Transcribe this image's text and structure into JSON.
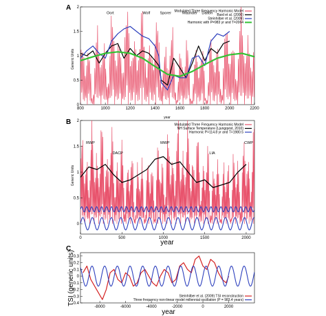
{
  "chart_data": [
    {
      "panel": "A",
      "type": "line",
      "xlabel": "year",
      "ylabel": "Generic Units",
      "xlim": [
        800,
        2200
      ],
      "ylim": [
        0,
        2
      ],
      "xticks": [
        "800",
        "1000",
        "1200",
        "1400",
        "1600",
        "1800",
        "2000",
        "2200"
      ],
      "yticks": [
        "0",
        "0.5",
        "1",
        "1.5",
        "2"
      ],
      "legend_position": "top-right",
      "annotations": [
        {
          "text": "Oort",
          "x": 1040,
          "y": 1.85
        },
        {
          "text": "Wolf",
          "x": 1330,
          "y": 1.85
        },
        {
          "text": "Sporer",
          "x": 1485,
          "y": 1.85
        },
        {
          "text": "Maunder",
          "x": 1680,
          "y": 1.85
        },
        {
          "text": "Dalton",
          "x": 1820,
          "y": 1.85
        }
      ],
      "series": [
        {
          "name": "Modulated Three Frequency Harmonic Model",
          "color": "#e8506a",
          "kind": "fill",
          "period": 11,
          "modPeriods": [
            61,
            115,
            983
          ],
          "base": 0.0
        },
        {
          "name": "Bard et al. (2000)",
          "color": "#000000",
          "x": [
            800,
            850,
            900,
            950,
            1000,
            1050,
            1100,
            1150,
            1200,
            1250,
            1300,
            1350,
            1400,
            1430,
            1450,
            1500,
            1550,
            1600,
            1650,
            1700,
            1750,
            1800,
            1850,
            1900,
            1950,
            2000
          ],
          "y": [
            1.05,
            1.0,
            1.1,
            0.85,
            1.05,
            1.2,
            1.25,
            0.95,
            1.15,
            1.0,
            1.1,
            1.05,
            0.9,
            0.8,
            0.5,
            0.4,
            0.95,
            0.75,
            0.55,
            0.85,
            1.2,
            0.9,
            1.15,
            1.05,
            1.25,
            1.3
          ]
        },
        {
          "name": "Steinhilber et al. (2009)",
          "color": "#2c3fbd",
          "x": [
            800,
            850,
            900,
            950,
            1000,
            1050,
            1100,
            1150,
            1200,
            1250,
            1300,
            1350,
            1400,
            1430,
            1450,
            1500,
            1550,
            1600,
            1650,
            1700,
            1750,
            1800,
            1850,
            1900,
            1950,
            2000
          ],
          "y": [
            0.95,
            1.1,
            1.2,
            1.05,
            0.95,
            1.3,
            1.45,
            1.55,
            1.6,
            1.5,
            1.4,
            1.35,
            1.2,
            1.0,
            0.45,
            0.3,
            0.6,
            0.55,
            0.55,
            0.95,
            1.0,
            0.8,
            1.3,
            1.45,
            1.4,
            1.5
          ]
        },
        {
          "name": "Harmonic with P=983 yr and T=2064",
          "color": "#33c233",
          "x": [
            800,
            900,
            1000,
            1100,
            1200,
            1300,
            1400,
            1500,
            1600,
            1700,
            1800,
            1900,
            2000,
            2100,
            2200
          ],
          "y": [
            0.9,
            0.98,
            1.05,
            1.08,
            1.05,
            0.95,
            0.78,
            0.62,
            0.58,
            0.68,
            0.82,
            0.95,
            1.02,
            1.05,
            0.98
          ]
        }
      ]
    },
    {
      "panel": "B",
      "type": "line",
      "xlabel": "year",
      "ylabel": "Generic Units",
      "xlim": [
        0,
        2100
      ],
      "ylim": [
        -0.2,
        2
      ],
      "xticks": [
        "0",
        "500",
        "1000",
        "1500",
        "2000"
      ],
      "yticks": [
        "0",
        "0.5",
        "1",
        "1.5",
        "2"
      ],
      "legend_position": "top-right",
      "annotations": [
        {
          "text": "RWP",
          "x": 120,
          "y": 1.55
        },
        {
          "text": "DACP",
          "x": 450,
          "y": 1.35
        },
        {
          "text": "MWP",
          "x": 1020,
          "y": 1.55
        },
        {
          "text": "LIA",
          "x": 1590,
          "y": 1.35
        },
        {
          "text": "CWP",
          "x": 2030,
          "y": 1.55
        }
      ],
      "series": [
        {
          "name": "Modulated Three Frequency Harmonic Model",
          "color": "#e8506a",
          "kind": "fill",
          "period": 11,
          "modPeriods": [
            61,
            115,
            983
          ],
          "base": 0.0
        },
        {
          "name": "NH Surface Temperature (Ljungqvist, 2010)",
          "color": "#000000",
          "x": [
            0,
            100,
            200,
            300,
            400,
            500,
            600,
            700,
            800,
            900,
            1000,
            1100,
            1200,
            1300,
            1400,
            1500,
            1600,
            1700,
            1800,
            1900,
            2000
          ],
          "y": [
            0.9,
            1.1,
            1.05,
            1.15,
            0.95,
            0.8,
            0.85,
            0.95,
            1.05,
            1.25,
            1.3,
            1.15,
            1.2,
            1.0,
            0.8,
            0.85,
            0.7,
            0.75,
            0.8,
            1.0,
            1.15
          ]
        },
        {
          "name": "Harmonic P=114.8 yr and T=1980.5",
          "color": "#2c3fbd",
          "kind": "sine",
          "period": 114.8,
          "amp": 0.12,
          "offset": 0.0
        },
        {
          "name": "",
          "color": "#2c3fbd",
          "kind": "sine",
          "period": 60,
          "amp": 0.05,
          "offset": 0.28
        }
      ]
    },
    {
      "panel": "C",
      "type": "line",
      "xlabel": "year",
      "ylabel": "TSI (generic units)",
      "xlim": [
        -9500,
        4000
      ],
      "ylim": [
        -0.4,
        0.35
      ],
      "xticks": [
        "-8000",
        "-6000",
        "-4000",
        "-2000",
        "0",
        "2000"
      ],
      "yticks": [
        "-0.4",
        "-0.3",
        "-0.2",
        "-0.1",
        "0",
        "0.1",
        "0.2",
        "0.3"
      ],
      "legend_position": "bottom-right",
      "series": [
        {
          "name": "Steinhilber et al. (2009) TSI reconstruction",
          "color": "#d42020",
          "x": [
            -9300,
            -9000,
            -8700,
            -8400,
            -8100,
            -7800,
            -7500,
            -7200,
            -6900,
            -6600,
            -6300,
            -6000,
            -5700,
            -5400,
            -5100,
            -4800,
            -4500,
            -4200,
            -3900,
            -3600,
            -3300,
            -3000,
            -2700,
            -2400,
            -2100,
            -1800,
            -1500,
            -1200,
            -900,
            -600,
            -300,
            0,
            300,
            600,
            900,
            1200,
            1500,
            1800,
            2000
          ],
          "y": [
            0.05,
            0.15,
            -0.05,
            -0.15,
            -0.25,
            -0.35,
            -0.2,
            0.05,
            0.1,
            -0.05,
            -0.1,
            0.05,
            0.0,
            -0.15,
            -0.1,
            0.05,
            0.1,
            0.0,
            -0.1,
            -0.15,
            0.0,
            0.1,
            0.05,
            -0.1,
            -0.05,
            0.15,
            0.2,
            0.1,
            0.05,
            0.25,
            0.3,
            0.15,
            0.1,
            0.25,
            0.2,
            0.05,
            -0.05,
            -0.1,
            0.0
          ]
        },
        {
          "name": "Three frequency non-linear model millennial oscillation (P = 983.4 years)",
          "color": "#2c3fbd",
          "kind": "sine",
          "period": 983.4,
          "amp": 0.15,
          "offset": 0.0
        }
      ]
    }
  ]
}
